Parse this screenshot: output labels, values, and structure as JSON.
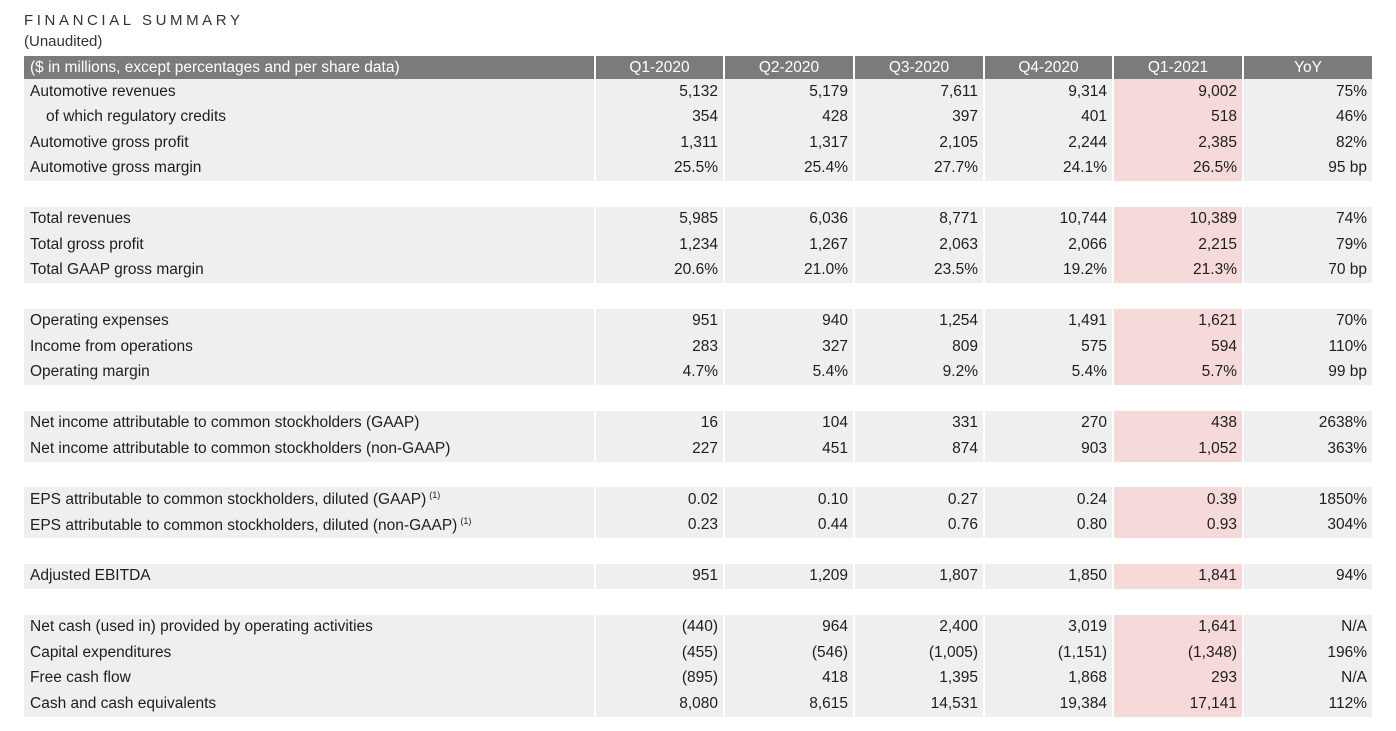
{
  "title": "FINANCIAL SUMMARY",
  "subtitle": "(Unaudited)",
  "headers": [
    "($ in millions, except percentages and per share data)",
    "Q1-2020",
    "Q2-2020",
    "Q3-2020",
    "Q4-2020",
    "Q1-2021",
    "YoY"
  ],
  "highlight_color": "#f6d9d9",
  "header_color": "#7b7b7b",
  "groups": [
    {
      "rows": [
        {
          "label": "Automotive revenues",
          "values": [
            "5,132",
            "5,179",
            "7,611",
            "9,314",
            "9,002",
            "75%"
          ]
        },
        {
          "label": "of which regulatory credits",
          "indent": true,
          "values": [
            "354",
            "428",
            "397",
            "401",
            "518",
            "46%"
          ]
        },
        {
          "label": "Automotive gross profit",
          "values": [
            "1,311",
            "1,317",
            "2,105",
            "2,244",
            "2,385",
            "82%"
          ]
        },
        {
          "label": "Automotive gross margin",
          "values": [
            "25.5%",
            "25.4%",
            "27.7%",
            "24.1%",
            "26.5%",
            "95 bp"
          ]
        }
      ]
    },
    {
      "rows": [
        {
          "label": "Total revenues",
          "values": [
            "5,985",
            "6,036",
            "8,771",
            "10,744",
            "10,389",
            "74%"
          ]
        },
        {
          "label": "Total gross profit",
          "values": [
            "1,234",
            "1,267",
            "2,063",
            "2,066",
            "2,215",
            "79%"
          ]
        },
        {
          "label": "Total GAAP gross margin",
          "values": [
            "20.6%",
            "21.0%",
            "23.5%",
            "19.2%",
            "21.3%",
            "70 bp"
          ]
        }
      ]
    },
    {
      "rows": [
        {
          "label": "Operating expenses",
          "values": [
            "951",
            "940",
            "1,254",
            "1,491",
            "1,621",
            "70%"
          ]
        },
        {
          "label": "Income from operations",
          "values": [
            "283",
            "327",
            "809",
            "575",
            "594",
            "110%"
          ]
        },
        {
          "label": "Operating margin",
          "values": [
            "4.7%",
            "5.4%",
            "9.2%",
            "5.4%",
            "5.7%",
            "99 bp"
          ]
        }
      ]
    },
    {
      "rows": [
        {
          "label": "Net income attributable to common stockholders (GAAP)",
          "values": [
            "16",
            "104",
            "331",
            "270",
            "438",
            "2638%"
          ]
        },
        {
          "label": "Net income attributable to common stockholders (non-GAAP)",
          "values": [
            "227",
            "451",
            "874",
            "903",
            "1,052",
            "363%"
          ]
        }
      ]
    },
    {
      "rows": [
        {
          "label": "EPS attributable to common stockholders, diluted (GAAP)",
          "note": "(1)",
          "values": [
            "0.02",
            "0.10",
            "0.27",
            "0.24",
            "0.39",
            "1850%"
          ]
        },
        {
          "label": "EPS attributable to common stockholders, diluted (non-GAAP)",
          "note": "(1)",
          "values": [
            "0.23",
            "0.44",
            "0.76",
            "0.80",
            "0.93",
            "304%"
          ]
        }
      ]
    },
    {
      "rows": [
        {
          "label": "Adjusted EBITDA",
          "values": [
            "951",
            "1,209",
            "1,807",
            "1,850",
            "1,841",
            "94%"
          ]
        }
      ]
    },
    {
      "rows": [
        {
          "label": "Net cash (used in) provided by operating activities",
          "values": [
            "(440)",
            "964",
            "2,400",
            "3,019",
            "1,641",
            "N/A"
          ]
        },
        {
          "label": "Capital expenditures",
          "values": [
            "(455)",
            "(546)",
            "(1,005)",
            "(1,151)",
            "(1,348)",
            "196%"
          ]
        },
        {
          "label": "Free cash flow",
          "values": [
            "(895)",
            "418",
            "1,395",
            "1,868",
            "293",
            "N/A"
          ]
        },
        {
          "label": "Cash and cash equivalents",
          "values": [
            "8,080",
            "8,615",
            "14,531",
            "19,384",
            "17,141",
            "112%"
          ]
        }
      ]
    }
  ]
}
